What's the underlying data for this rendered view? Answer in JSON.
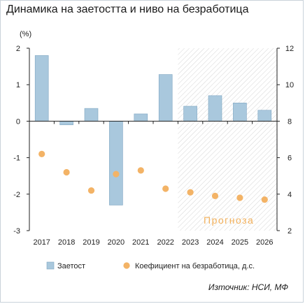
{
  "title": "Динамика на заетостта и ниво на безработица",
  "source": "Източник: НСИ, МФ",
  "colors": {
    "bars": "#a9c8dd",
    "bar_stroke": "#7fa6c2",
    "dots": "#f3b366",
    "hatch": "#d5d5d5",
    "axis": "#222222"
  },
  "chart_data": {
    "type": "bar",
    "categories": [
      "2017",
      "2018",
      "2019",
      "2020",
      "2021",
      "2022",
      "2023",
      "2024",
      "2025",
      "2026"
    ],
    "left_axis": {
      "label": "(%)",
      "ylim": [
        -3,
        2
      ],
      "ticks": [
        "-3",
        "-2",
        "-1",
        "0",
        "1",
        "2"
      ]
    },
    "right_axis": {
      "label": "",
      "ylim": [
        2,
        12
      ],
      "ticks": [
        "2",
        "4",
        "6",
        "8",
        "10",
        "12"
      ]
    },
    "series": [
      {
        "name": "Заетост",
        "kind": "bar",
        "axis": "left",
        "values": [
          1.8,
          -0.1,
          0.35,
          -2.3,
          0.2,
          1.28,
          0.41,
          0.7,
          0.5,
          0.3
        ]
      },
      {
        "name": "Коефициент на безработица, д.с.",
        "kind": "scatter",
        "axis": "right",
        "values": [
          6.2,
          5.2,
          4.2,
          5.1,
          5.3,
          4.3,
          4.1,
          3.9,
          3.8,
          3.7
        ]
      }
    ],
    "forecast": {
      "label": "Прогноза",
      "from": "2023",
      "to": "2026"
    },
    "legend": "bottom",
    "grid": false
  }
}
